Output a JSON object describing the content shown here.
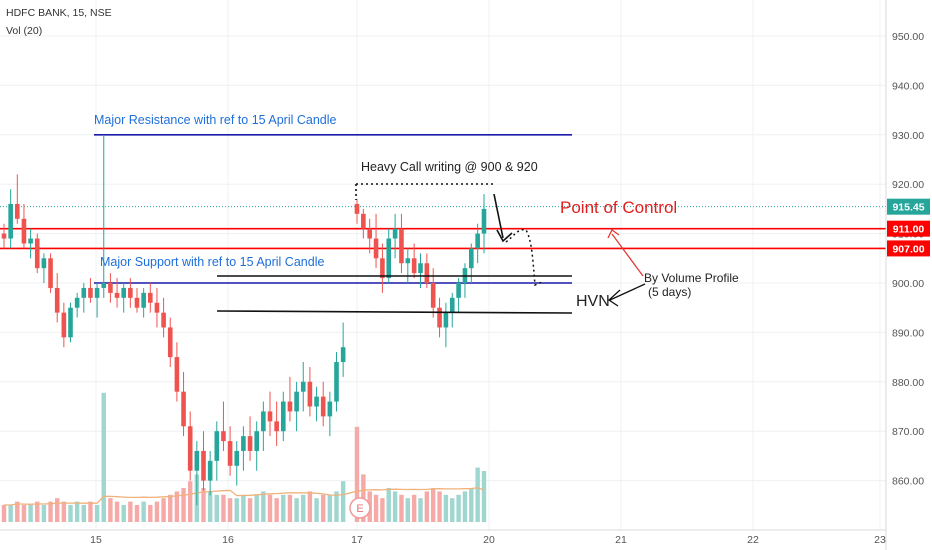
{
  "header": {
    "symbol_line": "HDFC BANK, 15, NSE",
    "volume_line": "Vol (20)"
  },
  "y_axis": {
    "ticks": [
      "950.00",
      "940.00",
      "930.00",
      "920.00",
      "910.00",
      "900.00",
      "890.00",
      "880.00",
      "870.00",
      "860.00"
    ],
    "tick_values": [
      950,
      940,
      930,
      920,
      910,
      900,
      890,
      880,
      870,
      860
    ]
  },
  "x_axis": {
    "ticks": [
      "15",
      "16",
      "17",
      "20",
      "21",
      "22",
      "23"
    ]
  },
  "price_labels": [
    {
      "text": "915.45",
      "value": 915.45,
      "color": "#26a69a"
    },
    {
      "text": "911.00",
      "value": 911.0,
      "color": "#ff0000"
    },
    {
      "text": "907.00",
      "value": 907.0,
      "color": "#ff0000"
    }
  ],
  "annotations": {
    "major_resistance": "Major Resistance  with ref to 15 April Candle",
    "major_support": "Major Support with ref to 15 April Candle",
    "heavy_call": "Heavy Call writing @ 900 & 920",
    "poc": "Point of Control",
    "volume_profile_1": "By Volume Profile",
    "volume_profile_2": "(5 days)",
    "hvn": "HVN",
    "earnings_marker": "E"
  },
  "colors": {
    "up": "#26a69a",
    "down": "#ef5350",
    "resistance_line": "#1a1aaa",
    "poc_line": "#ff0000",
    "annotation_blue": "#1e6fd9"
  },
  "chart_data": {
    "type": "candlestick",
    "title": "HDFC BANK, 15, NSE",
    "ylim": [
      852,
      956
    ],
    "levels": {
      "major_resistance": 930,
      "major_support": 900,
      "poc_upper": 911,
      "poc_lower": 907,
      "hvn_upper": 901,
      "hvn_lower": 894
    },
    "x_tick_labels": [
      "15",
      "16",
      "17",
      "20",
      "21",
      "22",
      "23"
    ],
    "candles": [
      [
        910,
        912,
        907,
        909
      ],
      [
        909,
        919,
        907,
        916
      ],
      [
        916,
        922,
        912,
        913
      ],
      [
        913,
        916,
        907,
        908
      ],
      [
        908,
        911,
        905,
        909
      ],
      [
        909,
        910,
        902,
        903
      ],
      [
        903,
        906,
        900,
        905
      ],
      [
        905,
        906,
        898,
        899
      ],
      [
        899,
        902,
        892,
        894
      ],
      [
        894,
        896,
        887,
        889
      ],
      [
        889,
        896,
        888,
        895
      ],
      [
        895,
        898,
        893,
        897
      ],
      [
        897,
        900,
        894,
        899
      ],
      [
        899,
        901,
        896,
        897
      ],
      [
        897,
        900,
        893,
        899
      ],
      [
        899,
        930,
        897,
        900
      ],
      [
        900,
        902,
        896,
        898
      ],
      [
        898,
        901,
        895,
        897
      ],
      [
        897,
        900,
        894,
        899
      ],
      [
        899,
        901,
        895,
        897
      ],
      [
        897,
        899,
        894,
        895
      ],
      [
        895,
        899,
        893,
        898
      ],
      [
        898,
        900,
        894,
        896
      ],
      [
        896,
        899,
        891,
        894
      ],
      [
        894,
        897,
        889,
        891
      ],
      [
        891,
        893,
        883,
        885
      ],
      [
        885,
        888,
        876,
        878
      ],
      [
        878,
        882,
        869,
        871
      ],
      [
        871,
        874,
        860,
        862
      ],
      [
        862,
        868,
        855,
        866
      ],
      [
        866,
        870,
        858,
        860
      ],
      [
        860,
        866,
        857,
        864
      ],
      [
        864,
        872,
        860,
        870
      ],
      [
        870,
        876,
        866,
        868
      ],
      [
        868,
        871,
        861,
        863
      ],
      [
        863,
        868,
        859,
        866
      ],
      [
        866,
        871,
        862,
        869
      ],
      [
        869,
        873,
        864,
        866
      ],
      [
        866,
        872,
        862,
        870
      ],
      [
        870,
        876,
        866,
        874
      ],
      [
        874,
        878,
        869,
        872
      ],
      [
        872,
        876,
        867,
        870
      ],
      [
        870,
        878,
        868,
        876
      ],
      [
        876,
        881,
        872,
        874
      ],
      [
        874,
        880,
        870,
        878
      ],
      [
        878,
        884,
        874,
        880
      ],
      [
        880,
        883,
        873,
        875
      ],
      [
        875,
        879,
        872,
        877
      ],
      [
        877,
        880,
        871,
        873
      ],
      [
        873,
        878,
        869,
        876
      ],
      [
        876,
        886,
        874,
        884
      ],
      [
        884,
        892,
        881,
        887
      ],
      [
        916,
        917,
        912,
        914
      ],
      [
        914,
        915,
        909,
        911
      ],
      [
        911,
        913,
        906,
        909
      ],
      [
        909,
        914,
        903,
        905
      ],
      [
        905,
        908,
        898,
        901
      ],
      [
        901,
        911,
        900,
        909
      ],
      [
        909,
        914,
        905,
        911
      ],
      [
        911,
        914,
        902,
        904
      ],
      [
        904,
        907,
        900,
        905
      ],
      [
        905,
        908,
        901,
        902
      ],
      [
        902,
        906,
        899,
        904
      ],
      [
        904,
        906,
        899,
        900
      ],
      [
        900,
        903,
        893,
        895
      ],
      [
        895,
        897,
        889,
        891
      ],
      [
        891,
        896,
        887,
        894
      ],
      [
        894,
        898,
        891,
        897
      ],
      [
        897,
        901,
        894,
        900
      ],
      [
        900,
        904,
        897,
        903
      ],
      [
        903,
        908,
        900,
        907
      ],
      [
        907,
        912,
        904,
        910
      ],
      [
        910,
        918,
        906,
        915
      ]
    ],
    "volumes": [
      5,
      5,
      6,
      5,
      5,
      6,
      5,
      6,
      7,
      6,
      5,
      6,
      5,
      6,
      5,
      38,
      7,
      6,
      5,
      6,
      5,
      6,
      5,
      6,
      7,
      8,
      9,
      10,
      12,
      14,
      10,
      9,
      8,
      8,
      7,
      7,
      8,
      7,
      8,
      9,
      8,
      7,
      8,
      8,
      7,
      8,
      9,
      7,
      8,
      8,
      9,
      12,
      28,
      14,
      9,
      8,
      7,
      10,
      9,
      8,
      7,
      8,
      7,
      9,
      10,
      9,
      8,
      7,
      8,
      9,
      10,
      16,
      15
    ]
  }
}
